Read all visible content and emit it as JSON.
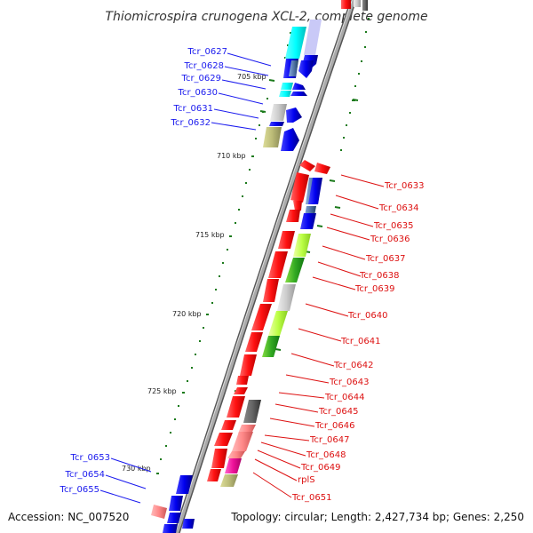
{
  "title": "Thiomicrospira crunogena XCL-2, complete genome",
  "accession": "Accession: NC_007520",
  "topology": "Topology: circular; Length: 2,427,734 bp; Genes: 2,250",
  "kbp_labels": [
    "705 kbp",
    "710 kbp",
    "715 kbp",
    "720 kbp",
    "725 kbp",
    "730 kbp"
  ],
  "left_labels": [
    "Tcr_0627",
    "Tcr_0628",
    "Tcr_0629",
    "Tcr_0630",
    "Tcr_0631",
    "Tcr_0632",
    "Tcr_0653",
    "Tcr_0654",
    "Tcr_0655"
  ],
  "right_labels": [
    "Tcr_0633",
    "Tcr_0634",
    "Tcr_0635",
    "Tcr_0636",
    "Tcr_0637",
    "Tcr_0638",
    "Tcr_0639",
    "Tcr_0640",
    "Tcr_0641",
    "Tcr_0642",
    "Tcr_0643",
    "Tcr_0644",
    "Tcr_0645",
    "Tcr_0646",
    "Tcr_0647",
    "Tcr_0648",
    "Tcr_0649",
    "rplS",
    "Tcr_0651"
  ],
  "colors": {
    "forward_strand": "#0a14e6",
    "reverse_strand": "#f41010",
    "left_label": "#1a1aee",
    "right_label": "#dd1111",
    "backbone": "#8c8c8c",
    "tick": "#1b7a1b"
  }
}
